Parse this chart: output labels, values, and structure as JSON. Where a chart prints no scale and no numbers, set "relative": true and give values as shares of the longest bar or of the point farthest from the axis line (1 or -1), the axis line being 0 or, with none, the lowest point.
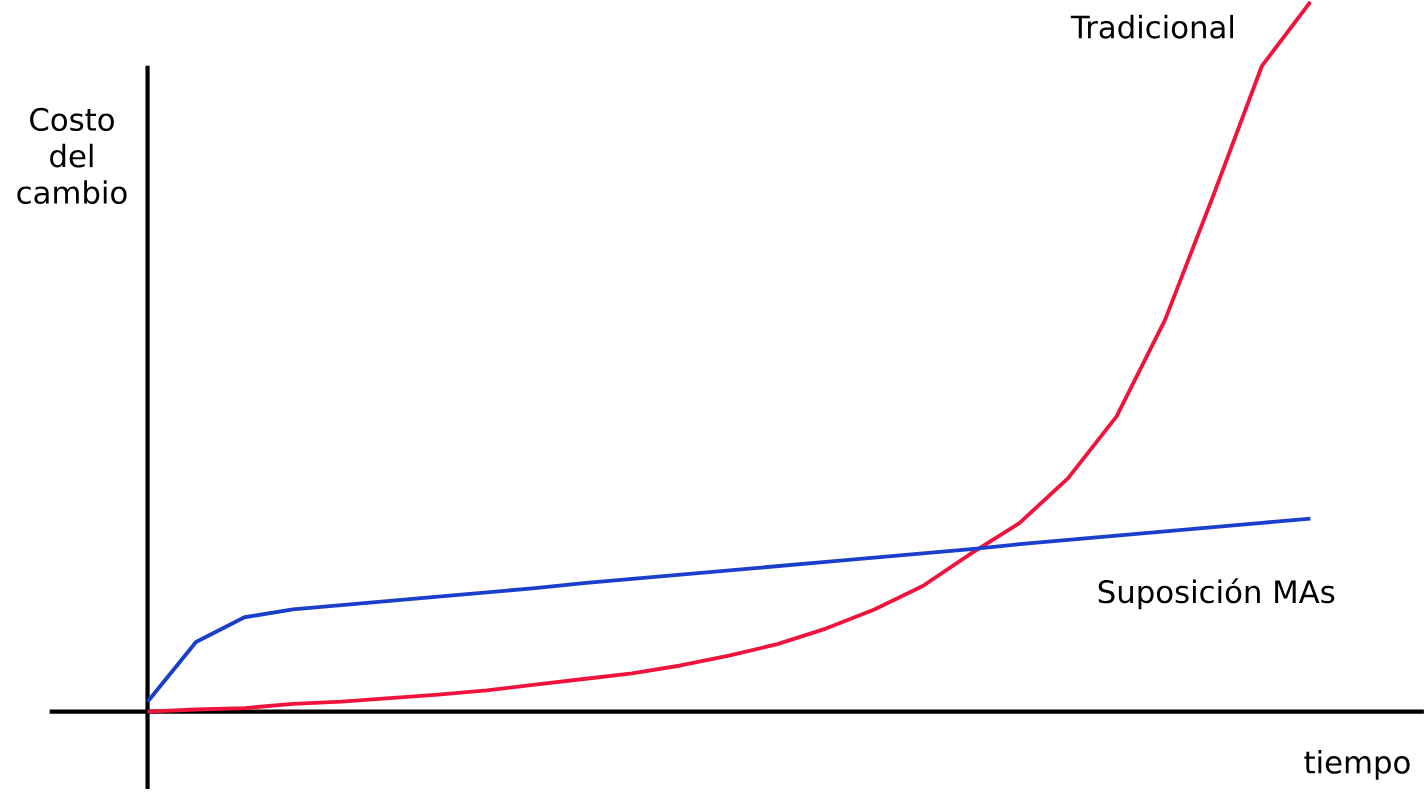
{
  "chart_data": {
    "type": "line",
    "relative": true,
    "xlabel": "tiempo",
    "ylabel": "Costo del cambio",
    "categories": [
      null,
      null,
      null,
      null,
      null,
      null,
      null,
      null,
      null,
      null,
      null,
      null,
      null,
      null,
      null,
      null,
      null,
      null,
      null,
      null,
      null,
      null,
      null,
      null,
      null
    ],
    "series": [
      {
        "name": "Tradicional",
        "color": "#f0143c",
        "values": [
          0,
          0.003,
          0.005,
          0.011,
          0.014,
          0.019,
          0.024,
          0.03,
          0.038,
          0.046,
          0.054,
          0.065,
          0.079,
          0.095,
          0.117,
          0.144,
          0.177,
          0.223,
          0.266,
          0.329,
          0.416,
          0.552,
          0.728,
          0.91,
          1
        ]
      },
      {
        "name": "Suposición MAs",
        "color": "#1a3fcc",
        "values": [
          0.014,
          0.098,
          0.133,
          0.144,
          0.15,
          0.156,
          0.162,
          0.168,
          0.174,
          0.181,
          0.187,
          0.193,
          0.199,
          0.205,
          0.211,
          0.217,
          0.223,
          0.229,
          0.236,
          0.242,
          0.248,
          0.254,
          0.26,
          0.266,
          0.272
        ]
      }
    ]
  }
}
